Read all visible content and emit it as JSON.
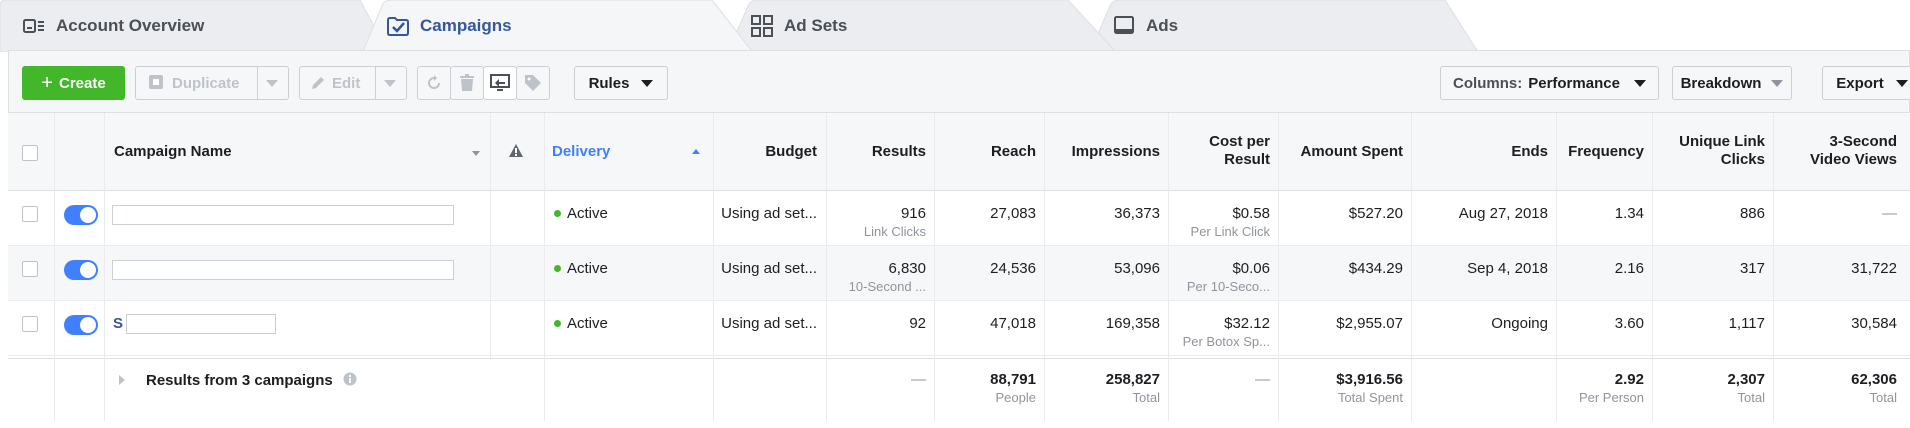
{
  "tabs": [
    {
      "label": "Account Overview",
      "icon": "account-overview-icon",
      "active": false
    },
    {
      "label": "Campaigns",
      "icon": "folder-check-icon",
      "active": true
    },
    {
      "label": "Ad Sets",
      "icon": "grid-icon",
      "active": false
    },
    {
      "label": "Ads",
      "icon": "monitor-icon",
      "active": false
    }
  ],
  "toolbar": {
    "create": "Create",
    "duplicate": "Duplicate",
    "edit": "Edit",
    "rules": "Rules",
    "columns_prefix": "Columns:",
    "columns_value": "Performance",
    "breakdown": "Breakdown",
    "export": "Export"
  },
  "headers": {
    "campaign_name": "Campaign Name",
    "delivery": "Delivery",
    "budget": "Budget",
    "results": "Results",
    "reach": "Reach",
    "impressions": "Impressions",
    "cost_per_result_1": "Cost per",
    "cost_per_result_2": "Result",
    "amount_spent": "Amount Spent",
    "ends": "Ends",
    "frequency": "Frequency",
    "unique_link_clicks_1": "Unique Link",
    "unique_link_clicks_2": "Clicks",
    "video_views_1": "3-Second",
    "video_views_2": "Video Views"
  },
  "rows": [
    {
      "name_prefix": "",
      "delivery": "Active",
      "budget": "Using ad set...",
      "results": "916",
      "results_sub": "Link Clicks",
      "reach": "27,083",
      "impressions": "36,373",
      "cost": "$0.58",
      "cost_sub": "Per Link Click",
      "spent": "$527.20",
      "ends": "Aug 27, 2018",
      "frequency": "1.34",
      "unique_clicks": "886",
      "video_views": "—"
    },
    {
      "name_prefix": "",
      "delivery": "Active",
      "budget": "Using ad set...",
      "results": "6,830",
      "results_sub": "10-Second ...",
      "reach": "24,536",
      "impressions": "53,096",
      "cost": "$0.06",
      "cost_sub": "Per 10-Seco...",
      "spent": "$434.29",
      "ends": "Sep 4, 2018",
      "frequency": "2.16",
      "unique_clicks": "317",
      "video_views": "31,722"
    },
    {
      "name_prefix": "S",
      "delivery": "Active",
      "budget": "Using ad set...",
      "results": "92",
      "results_sub": "",
      "reach": "47,018",
      "impressions": "169,358",
      "cost": "$32.12",
      "cost_sub": "Per Botox Sp...",
      "spent": "$2,955.07",
      "ends": "Ongoing",
      "frequency": "3.60",
      "unique_clicks": "1,117",
      "video_views": "30,584"
    }
  ],
  "summary": {
    "label": "Results from 3 campaigns",
    "results": "—",
    "reach": "88,791",
    "reach_sub": "People",
    "impressions": "258,827",
    "impressions_sub": "Total",
    "cost": "—",
    "spent": "$3,916.56",
    "spent_sub": "Total Spent",
    "frequency": "2.92",
    "frequency_sub": "Per Person",
    "unique_clicks": "2,307",
    "unique_clicks_sub": "Total",
    "video_views": "62,306",
    "video_views_sub": "Total"
  }
}
